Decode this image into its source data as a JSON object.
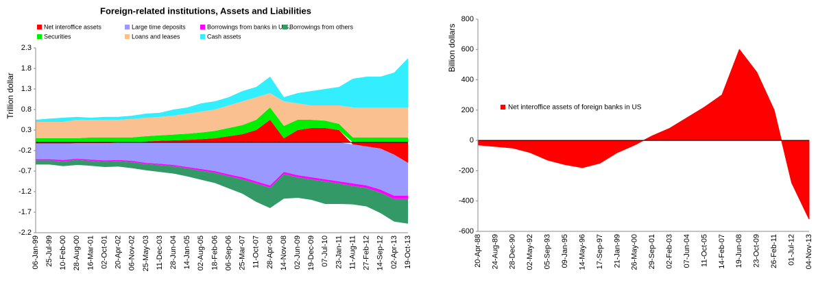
{
  "chart_data": [
    {
      "type": "stacked-area",
      "title": "Foreign-related institutions, Assets and Liabilities",
      "ylabel": "Trillion dollar",
      "categories": [
        "06-Jan-99",
        "25-Jul-99",
        "10-Feb-00",
        "28-Aug-00",
        "16-Mar-01",
        "02-Oct-01",
        "20-Apr-02",
        "06-Nov-02",
        "25-May-03",
        "11-Dec-03",
        "28-Jun-04",
        "14-Jan-05",
        "02-Aug-05",
        "18-Feb-06",
        "06-Sep-06",
        "25-Mar-07",
        "11-Oct-07",
        "28-Apr-08",
        "14-Nov-08",
        "02-Jun-09",
        "19-Dec-09",
        "07-Jul-10",
        "23-Jan-11",
        "11-Aug-11",
        "27-Feb-12",
        "14-Sep-12",
        "02-Apr-13",
        "19-Oct-13"
      ],
      "series": [
        {
          "name": "Net interoffice assets",
          "color": "#ff0000",
          "values": [
            -0.03,
            -0.03,
            -0.03,
            -0.02,
            -0.02,
            -0.02,
            -0.01,
            0.0,
            0.02,
            0.04,
            0.05,
            0.06,
            0.08,
            0.1,
            0.15,
            0.2,
            0.3,
            0.55,
            0.1,
            0.3,
            0.35,
            0.35,
            0.3,
            -0.05,
            -0.1,
            -0.15,
            -0.3,
            -0.5
          ]
        },
        {
          "name": "Securities",
          "color": "#00ee00",
          "values": [
            0.1,
            0.1,
            0.1,
            0.1,
            0.12,
            0.12,
            0.12,
            0.12,
            0.13,
            0.13,
            0.14,
            0.15,
            0.16,
            0.18,
            0.2,
            0.22,
            0.25,
            0.3,
            0.3,
            0.25,
            0.2,
            0.18,
            0.15,
            0.12,
            0.12,
            0.12,
            0.12,
            0.12
          ]
        },
        {
          "name": "Loans and leases",
          "color": "#fac090",
          "values": [
            0.4,
            0.4,
            0.4,
            0.45,
            0.43,
            0.43,
            0.43,
            0.45,
            0.45,
            0.45,
            0.46,
            0.49,
            0.51,
            0.52,
            0.55,
            0.58,
            0.55,
            0.35,
            0.6,
            0.4,
            0.35,
            0.37,
            0.45,
            0.73,
            0.73,
            0.73,
            0.73,
            0.73
          ]
        },
        {
          "name": "Cash assets",
          "color": "#33eeff",
          "values": [
            0.05,
            0.08,
            0.1,
            0.07,
            0.05,
            0.07,
            0.07,
            0.08,
            0.1,
            0.1,
            0.15,
            0.15,
            0.2,
            0.2,
            0.2,
            0.25,
            0.25,
            0.4,
            0.1,
            0.25,
            0.35,
            0.4,
            0.45,
            0.7,
            0.75,
            0.75,
            0.85,
            1.2
          ]
        },
        {
          "name": "Large time deposits",
          "color": "#9999ff",
          "values": [
            -0.38,
            -0.38,
            -0.4,
            -0.38,
            -0.4,
            -0.42,
            -0.42,
            -0.45,
            -0.5,
            -0.52,
            -0.55,
            -0.6,
            -0.65,
            -0.7,
            -0.78,
            -0.85,
            -0.95,
            -1.05,
            -0.72,
            -0.8,
            -0.85,
            -0.9,
            -0.95,
            -0.95,
            -0.95,
            -1.0,
            -1.0,
            -0.8
          ]
        },
        {
          "name": "Borrowings from banks in U.S.",
          "color": "#ff00ff",
          "values": [
            -0.03,
            -0.03,
            -0.03,
            -0.03,
            -0.03,
            -0.03,
            -0.03,
            -0.03,
            -0.03,
            -0.03,
            -0.03,
            -0.03,
            -0.04,
            -0.04,
            -0.04,
            -0.05,
            -0.05,
            -0.05,
            -0.05,
            -0.05,
            -0.05,
            -0.05,
            -0.05,
            -0.06,
            -0.06,
            -0.07,
            -0.08,
            -0.08
          ]
        },
        {
          "name": "Borrowings from others",
          "color": "#339966",
          "values": [
            -0.1,
            -0.1,
            -0.12,
            -0.12,
            -0.12,
            -0.13,
            -0.13,
            -0.15,
            -0.15,
            -0.17,
            -0.18,
            -0.2,
            -0.22,
            -0.25,
            -0.3,
            -0.35,
            -0.45,
            -0.5,
            -0.6,
            -0.5,
            -0.5,
            -0.55,
            -0.5,
            -0.45,
            -0.45,
            -0.5,
            -0.55,
            -0.6
          ]
        }
      ],
      "legend_order": [
        0,
        4,
        5,
        6,
        1,
        2,
        3
      ],
      "ylim": [
        -2.2,
        2.3
      ],
      "yticks": [
        -2.2,
        -1.7,
        -1.2,
        -0.7,
        -0.2,
        0.3,
        0.8,
        1.3,
        1.8,
        2.3
      ],
      "grid": false,
      "legend": "top"
    },
    {
      "type": "area",
      "ylabel": "Billion dollars",
      "categories": [
        "20-Apr-88",
        "24-Aug-89",
        "28-Dec-90",
        "02-May-92",
        "05-Sep-93",
        "09-Jan-95",
        "14-May-96",
        "17-Sep-97",
        "21-Jan-99",
        "26-May-00",
        "29-Sep-01",
        "02-Feb-03",
        "07-Jun-04",
        "11-Oct-05",
        "14-Feb-07",
        "19-Jun-08",
        "23-Oct-09",
        "26-Feb-11",
        "01-Jul-12",
        "04-Nov-13"
      ],
      "series": [
        {
          "name": "Net interoffice assets of foreign banks in US",
          "color": "#ff0000",
          "values": [
            -30,
            -40,
            -50,
            -80,
            -130,
            -160,
            -180,
            -150,
            -80,
            -30,
            30,
            80,
            150,
            220,
            300,
            600,
            450,
            200,
            -280,
            -520
          ]
        }
      ],
      "ylim": [
        -600,
        800
      ],
      "yticks": [
        -600,
        -400,
        -200,
        0,
        200,
        400,
        600,
        800
      ],
      "grid": false,
      "legend": "center-left"
    }
  ]
}
